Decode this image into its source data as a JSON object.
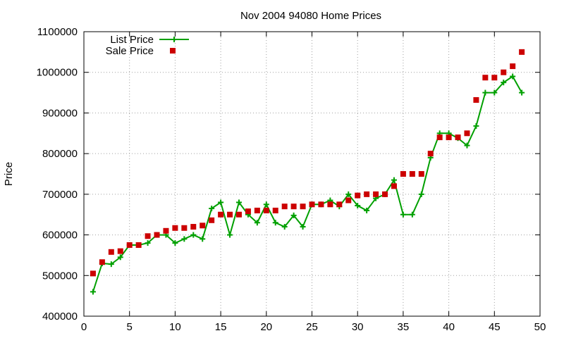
{
  "chart_data": {
    "type": "line",
    "title": "Nov 2004 94080 Home Prices",
    "xlabel": "",
    "ylabel": "Price",
    "xlim": [
      0,
      50
    ],
    "ylim": [
      400000,
      1100000
    ],
    "x_ticks": [
      "0",
      "5",
      "10",
      "15",
      "20",
      "25",
      "30",
      "35",
      "40",
      "45",
      "50"
    ],
    "y_ticks": [
      "400000",
      "500000",
      "600000",
      "700000",
      "800000",
      "900000",
      "1000000",
      "1100000"
    ],
    "grid": true,
    "legend_position": "top-left",
    "series": [
      {
        "name": "List Price",
        "style": "line-plus",
        "color": "#00a000",
        "x": [
          1,
          2,
          3,
          4,
          5,
          6,
          7,
          8,
          9,
          10,
          11,
          12,
          13,
          14,
          15,
          16,
          17,
          18,
          19,
          20,
          21,
          22,
          23,
          24,
          25,
          26,
          27,
          28,
          29,
          30,
          31,
          32,
          33,
          34,
          35,
          36,
          37,
          38,
          39,
          40,
          41,
          42,
          43,
          44,
          45,
          46,
          47,
          48
        ],
        "y": [
          460000,
          530000,
          528000,
          545000,
          575000,
          575000,
          580000,
          600000,
          600000,
          580000,
          590000,
          600000,
          590000,
          665000,
          680000,
          600000,
          680000,
          650000,
          630000,
          675000,
          630000,
          620000,
          648000,
          620000,
          675000,
          675000,
          685000,
          670000,
          700000,
          672000,
          660000,
          690000,
          700000,
          735000,
          650000,
          650000,
          700000,
          790000,
          850000,
          850000,
          838000,
          820000,
          868000,
          950000,
          950000,
          975000,
          990000,
          950000
        ]
      },
      {
        "name": "Sale Price",
        "style": "square-points",
        "color": "#cc0000",
        "x": [
          1,
          2,
          3,
          4,
          5,
          6,
          7,
          8,
          9,
          10,
          11,
          12,
          13,
          14,
          15,
          16,
          17,
          18,
          19,
          20,
          21,
          22,
          23,
          24,
          25,
          26,
          27,
          28,
          29,
          30,
          31,
          32,
          33,
          34,
          35,
          36,
          37,
          38,
          39,
          40,
          41,
          42,
          43,
          44,
          45,
          46,
          47,
          48
        ],
        "y": [
          505000,
          533000,
          558000,
          560000,
          575000,
          575000,
          597000,
          600000,
          610000,
          617000,
          617000,
          620000,
          623000,
          636000,
          650000,
          650000,
          650000,
          658000,
          660000,
          660000,
          660000,
          670000,
          670000,
          670000,
          675000,
          675000,
          675000,
          675000,
          685000,
          697000,
          700000,
          700000,
          700000,
          720000,
          750000,
          750000,
          750000,
          800000,
          840000,
          840000,
          840000,
          850000,
          932000,
          987000,
          987000,
          1000000,
          1015000,
          1050000
        ]
      }
    ]
  }
}
